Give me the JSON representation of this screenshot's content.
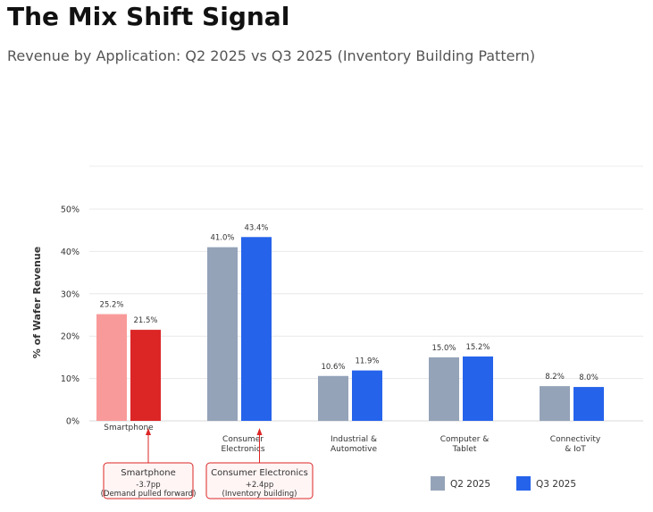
{
  "header": {
    "title": "The Mix Shift Signal",
    "subtitle": "Revenue by Application: Q2 2025 vs Q3 2025 (Inventory Building Pattern)"
  },
  "chart_data": {
    "type": "bar",
    "title": "",
    "xlabel": "",
    "ylabel": "% of Wafer Revenue",
    "ylim": [
      0,
      60
    ],
    "yticks": [
      "0%",
      "10%",
      "20%",
      "30%",
      "40%",
      "50%"
    ],
    "grid": true,
    "legend_position": "bottom-right",
    "categories": [
      [
        "Smartphone"
      ],
      [
        "Consumer",
        "Electronics"
      ],
      [
        "Industrial &",
        "Automotive"
      ],
      [
        "Computer &",
        "Tablet"
      ],
      [
        "Connectivity",
        "& IoT"
      ]
    ],
    "series": [
      {
        "name": "Q2 2025",
        "color": "#94a3b8",
        "values": [
          25.2,
          41.0,
          10.6,
          15.0,
          8.2
        ],
        "labels": [
          "25.2%",
          "41.0%",
          "10.6%",
          "15.0%",
          "8.2%"
        ]
      },
      {
        "name": "Q3 2025",
        "color": "#2563eb",
        "values": [
          21.5,
          43.4,
          11.9,
          15.2,
          8.0
        ],
        "labels": [
          "21.5%",
          "43.4%",
          "11.9%",
          "15.2%",
          "8.0%"
        ]
      }
    ],
    "highlight": {
      "category_index": 0,
      "colors": [
        "#f99a9a",
        "#dc2626"
      ]
    },
    "annotations": [
      {
        "category_index": 0,
        "title": "Smartphone",
        "lines": [
          "-3.7pp",
          "(Demand pulled forward)"
        ]
      },
      {
        "category_index": 1,
        "title": "Consumer Electronics",
        "lines": [
          "+2.4pp",
          "(Inventory building)"
        ]
      }
    ]
  }
}
